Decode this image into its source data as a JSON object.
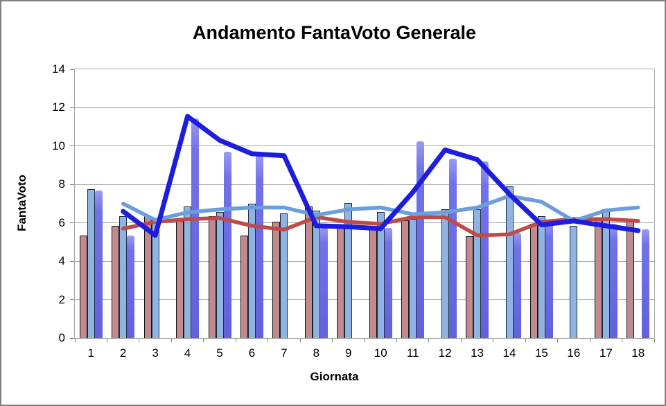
{
  "title": "Andamento FantaVoto Generale",
  "y_axis": {
    "label": "FantaVoto",
    "min": 0,
    "max": 14,
    "tick_step": 2,
    "ticks": [
      0,
      2,
      4,
      6,
      8,
      10,
      12,
      14
    ]
  },
  "x_axis": {
    "label": "Giornata",
    "ticks": [
      "1",
      "2",
      "3",
      "4",
      "5",
      "6",
      "7",
      "8",
      "9",
      "10",
      "11",
      "12",
      "13",
      "14",
      "15",
      "16",
      "17",
      "18"
    ]
  },
  "colors": {
    "rose_bar": "#c18a8e",
    "lightblue_bar": "#8fb3e2",
    "purple_bar": "#6e6ee6",
    "red_line": "#be4b48",
    "lightblue_line": "#6d9edc",
    "darkblue_line": "#1d1de0",
    "gridline": "#a8a8a8",
    "axis": "#808080"
  },
  "chart_data": {
    "type": "bar",
    "subtype": "combo-bar-line",
    "title": "Andamento FantaVoto Generale",
    "xlabel": "Giornata",
    "ylabel": "FantaVoto",
    "ylim": [
      0,
      14
    ],
    "grid": true,
    "legend": "none",
    "categories": [
      1,
      2,
      3,
      4,
      5,
      6,
      7,
      8,
      9,
      10,
      11,
      12,
      13,
      14,
      15,
      16,
      17,
      18
    ],
    "series": [
      {
        "name": "bar-rose",
        "type": "bar",
        "color": "#c18a8e",
        "values": [
          5.35,
          5.85,
          6.35,
          6.1,
          6.35,
          5.35,
          6.05,
          6.85,
          5.75,
          5.8,
          6.15,
          null,
          5.3,
          null,
          5.95,
          null,
          6.15,
          6.1
        ]
      },
      {
        "name": "bar-lightblue",
        "type": "bar",
        "color": "#8fb3e2",
        "values": [
          7.75,
          6.35,
          6.2,
          6.85,
          6.55,
          7.0,
          6.5,
          6.65,
          7.05,
          6.55,
          6.2,
          6.7,
          6.7,
          7.9,
          6.35,
          5.85,
          6.7,
          null
        ]
      },
      {
        "name": "bar-purple",
        "type": "bar",
        "color": "#6e6ee6",
        "values": [
          7.7,
          5.35,
          null,
          11.45,
          9.7,
          9.6,
          null,
          5.75,
          null,
          5.75,
          10.25,
          9.35,
          9.2,
          5.5,
          6.1,
          null,
          5.95,
          5.65
        ]
      },
      {
        "name": "line-red",
        "type": "line",
        "color": "#be4b48",
        "width": 5.5,
        "values": [
          null,
          5.7,
          6.05,
          6.2,
          6.25,
          5.85,
          5.65,
          6.3,
          6.05,
          5.95,
          6.3,
          6.3,
          5.35,
          5.4,
          6.05,
          6.2,
          6.2,
          6.1
        ]
      },
      {
        "name": "line-lightblue",
        "type": "line",
        "color": "#6d9edc",
        "width": 5.5,
        "values": [
          null,
          7.0,
          6.15,
          6.55,
          6.7,
          6.8,
          6.8,
          6.4,
          6.7,
          6.8,
          6.45,
          6.55,
          6.8,
          7.4,
          7.1,
          6.1,
          6.65,
          6.8
        ]
      },
      {
        "name": "line-darkblue",
        "type": "line",
        "color": "#1d1de0",
        "width": 7,
        "values": [
          null,
          6.6,
          5.35,
          11.55,
          10.3,
          9.6,
          9.5,
          5.85,
          5.8,
          5.7,
          7.6,
          9.8,
          9.3,
          7.5,
          5.9,
          6.1,
          5.85,
          5.6
        ]
      }
    ]
  }
}
